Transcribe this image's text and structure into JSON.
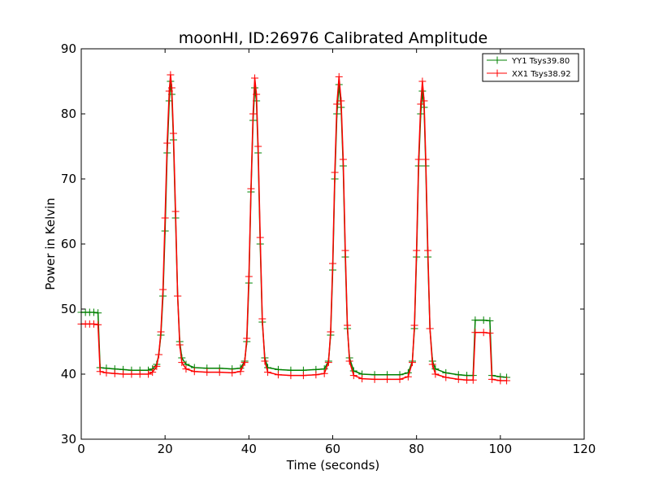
{
  "chart_data": {
    "type": "line",
    "title": "moonHI, ID:26976 Calibrated Amplitude",
    "xlabel": "Time (seconds)",
    "ylabel": "Power in Kelvin",
    "xlim": [
      0,
      120
    ],
    "ylim": [
      30,
      90
    ],
    "xticks": [
      0,
      20,
      40,
      60,
      80,
      100,
      120
    ],
    "yticks": [
      30,
      40,
      50,
      60,
      70,
      80,
      90
    ],
    "grid": false,
    "legend_position": "top-right",
    "series": [
      {
        "name": "YY1 Tsys39.80",
        "color": "#008000",
        "marker": "+",
        "points": [
          [
            0,
            49.5
          ],
          [
            1,
            49.5
          ],
          [
            2,
            49.5
          ],
          [
            3,
            49.5
          ],
          [
            4,
            49.4
          ],
          [
            4.5,
            41.0
          ],
          [
            6,
            40.9
          ],
          [
            8,
            40.8
          ],
          [
            10,
            40.7
          ],
          [
            12,
            40.6
          ],
          [
            14,
            40.6
          ],
          [
            16,
            40.6
          ],
          [
            17,
            40.8
          ],
          [
            18,
            41.5
          ],
          [
            18.5,
            43.0
          ],
          [
            19,
            46.0
          ],
          [
            19.5,
            52.0
          ],
          [
            20,
            62.0
          ],
          [
            20.5,
            74.0
          ],
          [
            21,
            82.0
          ],
          [
            21.3,
            85.0
          ],
          [
            21.6,
            83.0
          ],
          [
            22,
            76.0
          ],
          [
            22.5,
            64.0
          ],
          [
            23,
            52.0
          ],
          [
            23.5,
            45.0
          ],
          [
            24,
            42.5
          ],
          [
            25,
            41.5
          ],
          [
            27,
            41.0
          ],
          [
            30,
            40.9
          ],
          [
            33,
            40.9
          ],
          [
            36,
            40.8
          ],
          [
            38,
            40.9
          ],
          [
            39,
            42.0
          ],
          [
            39.5,
            45.0
          ],
          [
            40,
            54.0
          ],
          [
            40.5,
            68.0
          ],
          [
            41,
            79.0
          ],
          [
            41.4,
            84.0
          ],
          [
            41.8,
            82.0
          ],
          [
            42.2,
            74.0
          ],
          [
            42.7,
            60.0
          ],
          [
            43.2,
            48.0
          ],
          [
            43.8,
            42.5
          ],
          [
            44.5,
            41.0
          ],
          [
            47,
            40.7
          ],
          [
            50,
            40.6
          ],
          [
            53,
            40.6
          ],
          [
            56,
            40.7
          ],
          [
            58,
            40.8
          ],
          [
            59,
            42.0
          ],
          [
            59.5,
            46.0
          ],
          [
            60,
            56.0
          ],
          [
            60.5,
            70.0
          ],
          [
            61,
            80.0
          ],
          [
            61.5,
            84.5
          ],
          [
            62,
            81.0
          ],
          [
            62.5,
            72.0
          ],
          [
            63,
            58.0
          ],
          [
            63.5,
            47.0
          ],
          [
            64,
            42.5
          ],
          [
            65,
            40.5
          ],
          [
            67,
            40.0
          ],
          [
            70,
            39.9
          ],
          [
            73,
            39.9
          ],
          [
            76,
            39.9
          ],
          [
            78,
            40.2
          ],
          [
            79,
            42.0
          ],
          [
            79.5,
            47.0
          ],
          [
            80,
            58.0
          ],
          [
            80.5,
            72.0
          ],
          [
            81,
            80.0
          ],
          [
            81.4,
            83.5
          ],
          [
            81.8,
            81.0
          ],
          [
            82.2,
            72.0
          ],
          [
            82.7,
            58.0
          ],
          [
            83.2,
            47.0
          ],
          [
            83.8,
            42.0
          ],
          [
            84.5,
            40.8
          ],
          [
            87,
            40.2
          ],
          [
            90,
            39.9
          ],
          [
            92,
            39.8
          ],
          [
            93.5,
            39.8
          ],
          [
            94,
            48.3
          ],
          [
            96,
            48.3
          ],
          [
            97.5,
            48.2
          ],
          [
            98,
            39.8
          ],
          [
            100,
            39.6
          ],
          [
            101.5,
            39.5
          ]
        ]
      },
      {
        "name": "XX1 Tsys38.92",
        "color": "#ff0000",
        "marker": "+",
        "points": [
          [
            0,
            47.7
          ],
          [
            1,
            47.7
          ],
          [
            2,
            47.7
          ],
          [
            3,
            47.7
          ],
          [
            4,
            47.6
          ],
          [
            4.5,
            40.4
          ],
          [
            6,
            40.2
          ],
          [
            8,
            40.1
          ],
          [
            10,
            40.0
          ],
          [
            12,
            40.0
          ],
          [
            14,
            40.0
          ],
          [
            16,
            40.0
          ],
          [
            17,
            40.3
          ],
          [
            18,
            41.2
          ],
          [
            18.5,
            43.0
          ],
          [
            19,
            46.5
          ],
          [
            19.5,
            53.0
          ],
          [
            20,
            64.0
          ],
          [
            20.5,
            75.5
          ],
          [
            21,
            83.5
          ],
          [
            21.3,
            86.0
          ],
          [
            21.6,
            84.0
          ],
          [
            22,
            77.0
          ],
          [
            22.5,
            65.0
          ],
          [
            23,
            52.0
          ],
          [
            23.5,
            44.5
          ],
          [
            24,
            41.8
          ],
          [
            25,
            40.8
          ],
          [
            27,
            40.4
          ],
          [
            30,
            40.3
          ],
          [
            33,
            40.3
          ],
          [
            36,
            40.2
          ],
          [
            38,
            40.4
          ],
          [
            39,
            41.8
          ],
          [
            39.5,
            45.5
          ],
          [
            40,
            55.0
          ],
          [
            40.5,
            68.5
          ],
          [
            41,
            80.0
          ],
          [
            41.4,
            85.5
          ],
          [
            41.8,
            83.0
          ],
          [
            42.2,
            75.0
          ],
          [
            42.7,
            61.0
          ],
          [
            43.2,
            48.5
          ],
          [
            43.8,
            42.0
          ],
          [
            44.5,
            40.3
          ],
          [
            47,
            39.9
          ],
          [
            50,
            39.8
          ],
          [
            53,
            39.8
          ],
          [
            56,
            39.9
          ],
          [
            58,
            40.1
          ],
          [
            59,
            41.8
          ],
          [
            59.5,
            46.5
          ],
          [
            60,
            57.0
          ],
          [
            60.5,
            71.0
          ],
          [
            61,
            81.5
          ],
          [
            61.5,
            85.7
          ],
          [
            62,
            82.0
          ],
          [
            62.5,
            73.0
          ],
          [
            63,
            59.0
          ],
          [
            63.5,
            47.5
          ],
          [
            64,
            42.0
          ],
          [
            65,
            39.8
          ],
          [
            67,
            39.3
          ],
          [
            70,
            39.2
          ],
          [
            73,
            39.2
          ],
          [
            76,
            39.2
          ],
          [
            78,
            39.6
          ],
          [
            79,
            41.8
          ],
          [
            79.5,
            47.5
          ],
          [
            80,
            59.0
          ],
          [
            80.5,
            73.0
          ],
          [
            81,
            81.5
          ],
          [
            81.4,
            85.0
          ],
          [
            81.8,
            82.0
          ],
          [
            82.2,
            73.0
          ],
          [
            82.7,
            59.0
          ],
          [
            83.2,
            47.0
          ],
          [
            83.8,
            41.5
          ],
          [
            84.5,
            40.0
          ],
          [
            87,
            39.5
          ],
          [
            90,
            39.2
          ],
          [
            92,
            39.1
          ],
          [
            93.5,
            39.1
          ],
          [
            94,
            46.4
          ],
          [
            96,
            46.4
          ],
          [
            97.5,
            46.3
          ],
          [
            98,
            39.2
          ],
          [
            100,
            39.0
          ],
          [
            101.5,
            39.0
          ]
        ]
      }
    ]
  }
}
